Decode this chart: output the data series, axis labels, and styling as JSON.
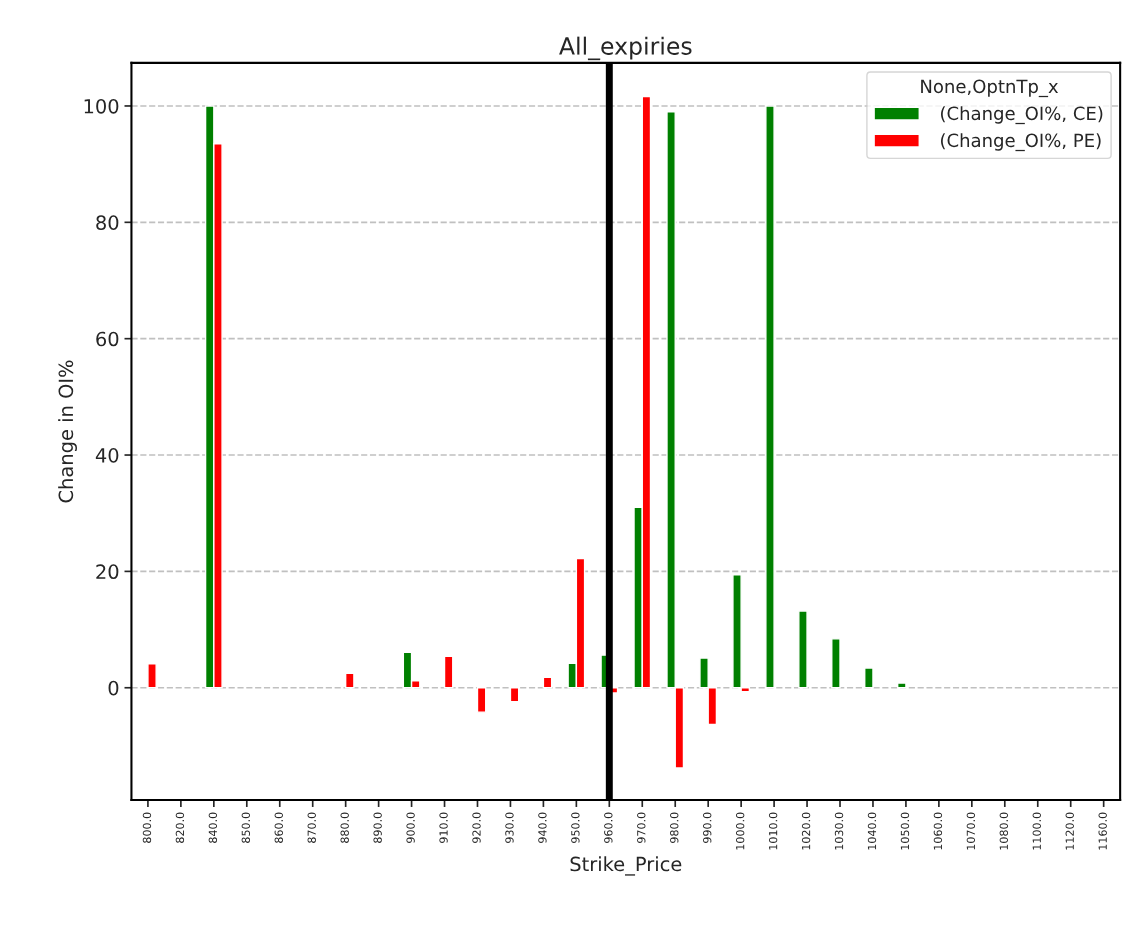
{
  "chart_data": {
    "type": "bar",
    "title": "All_expiries",
    "xlabel": "Strike_Price",
    "ylabel": "Change in OI%",
    "legend_title": "None,OptnTp_x",
    "categories": [
      "800.0",
      "820.0",
      "840.0",
      "850.0",
      "860.0",
      "870.0",
      "880.0",
      "890.0",
      "900.0",
      "910.0",
      "920.0",
      "930.0",
      "940.0",
      "950.0",
      "960.0",
      "970.0",
      "980.0",
      "990.0",
      "1000.0",
      "1010.0",
      "1020.0",
      "1030.0",
      "1040.0",
      "1050.0",
      "1060.0",
      "1070.0",
      "1080.0",
      "1100.0",
      "1120.0",
      "1160.0"
    ],
    "series": [
      {
        "name": " (Change_OI%, CE)",
        "color": "#008000",
        "values": [
          null,
          null,
          100,
          null,
          null,
          null,
          null,
          null,
          6.1,
          null,
          null,
          null,
          null,
          4.2,
          5.6,
          31,
          99.0,
          5.1,
          19.4,
          100,
          13.2,
          8.4,
          3.4,
          0.8,
          null,
          null,
          null,
          null,
          null,
          null
        ]
      },
      {
        "name": " (Change_OI%, PE)",
        "color": "#ff0000",
        "values": [
          4.1,
          null,
          93.5,
          null,
          null,
          null,
          2.5,
          null,
          1.2,
          5.4,
          -4.2,
          -2.4,
          1.8,
          22.2,
          -0.9,
          101.6,
          -13.8,
          -6.3,
          -0.7,
          null,
          null,
          null,
          null,
          null,
          null,
          null,
          null,
          null,
          null,
          null
        ]
      }
    ],
    "ylim": [
      -19.3,
      107.4
    ],
    "yticks": [
      0,
      20,
      40,
      60,
      80,
      100
    ],
    "grid": "y",
    "legend": "top right",
    "ref_lines": [
      {
        "axis": "x",
        "value": "960.0",
        "color": "#000000",
        "line_style": "solid"
      }
    ]
  }
}
